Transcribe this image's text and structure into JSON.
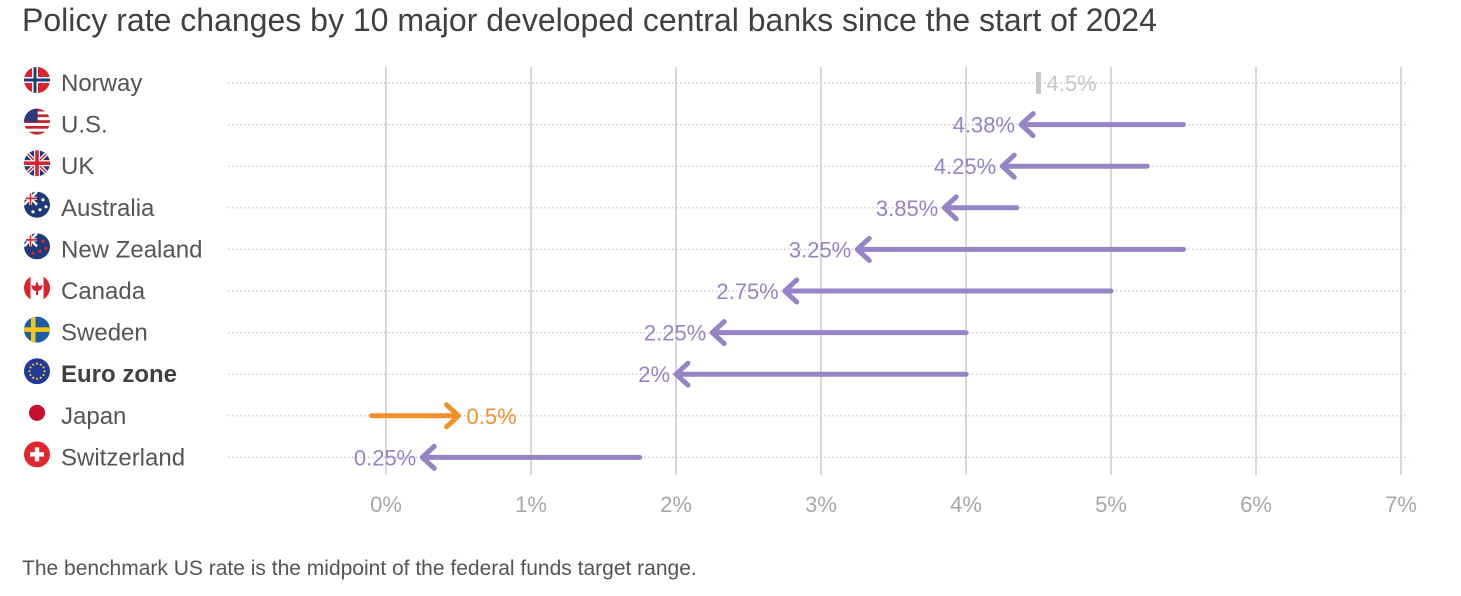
{
  "title": "Policy rate changes by 10 major developed central banks since the start of 2024",
  "footnote": "The benchmark US rate is the midpoint of the federal funds target range.",
  "colors": {
    "cut": "#9584c6",
    "hike": "#f0912c",
    "unchanged": "#c8c8c8",
    "gridline": "#c4c4c4",
    "tick_label": "#a8a8a8"
  },
  "chart_data": {
    "type": "arrow",
    "xlabel": "",
    "ylabel": "",
    "xlim": [
      -0.0025,
      0.0705
    ],
    "x_ticks": [
      0,
      0.01,
      0.02,
      0.03,
      0.04,
      0.05,
      0.06,
      0.07
    ],
    "x_tick_labels": [
      "0%",
      "1%",
      "2%",
      "3%",
      "4%",
      "5%",
      "6%",
      "7%"
    ],
    "grid": true,
    "series": [
      {
        "category": "Norway",
        "flag": "norway-flag-icon",
        "start": 0.045,
        "end": 0.045,
        "label": "4.5%",
        "direction": "unchanged",
        "bold": false
      },
      {
        "category": "U.S.",
        "flag": "us-flag-icon",
        "start": 0.055,
        "end": 0.0438,
        "label": "4.38%",
        "direction": "cut",
        "bold": false
      },
      {
        "category": "UK",
        "flag": "uk-flag-icon",
        "start": 0.0525,
        "end": 0.0425,
        "label": "4.25%",
        "direction": "cut",
        "bold": false
      },
      {
        "category": "Australia",
        "flag": "australia-flag-icon",
        "start": 0.0435,
        "end": 0.0385,
        "label": "3.85%",
        "direction": "cut",
        "bold": false
      },
      {
        "category": "New Zealand",
        "flag": "new-zealand-flag-icon",
        "start": 0.055,
        "end": 0.0325,
        "label": "3.25%",
        "direction": "cut",
        "bold": false
      },
      {
        "category": "Canada",
        "flag": "canada-flag-icon",
        "start": 0.05,
        "end": 0.0275,
        "label": "2.75%",
        "direction": "cut",
        "bold": false
      },
      {
        "category": "Sweden",
        "flag": "sweden-flag-icon",
        "start": 0.04,
        "end": 0.0225,
        "label": "2.25%",
        "direction": "cut",
        "bold": false
      },
      {
        "category": "Euro zone",
        "flag": "eu-flag-icon",
        "start": 0.04,
        "end": 0.02,
        "label": "2%",
        "direction": "cut",
        "bold": true
      },
      {
        "category": "Japan",
        "flag": "japan-flag-icon",
        "start": -0.001,
        "end": 0.005,
        "label": "0.5%",
        "direction": "hike",
        "bold": false
      },
      {
        "category": "Switzerland",
        "flag": "switzerland-flag-icon",
        "start": 0.0175,
        "end": 0.0025,
        "label": "0.25%",
        "direction": "cut",
        "bold": false
      }
    ]
  }
}
